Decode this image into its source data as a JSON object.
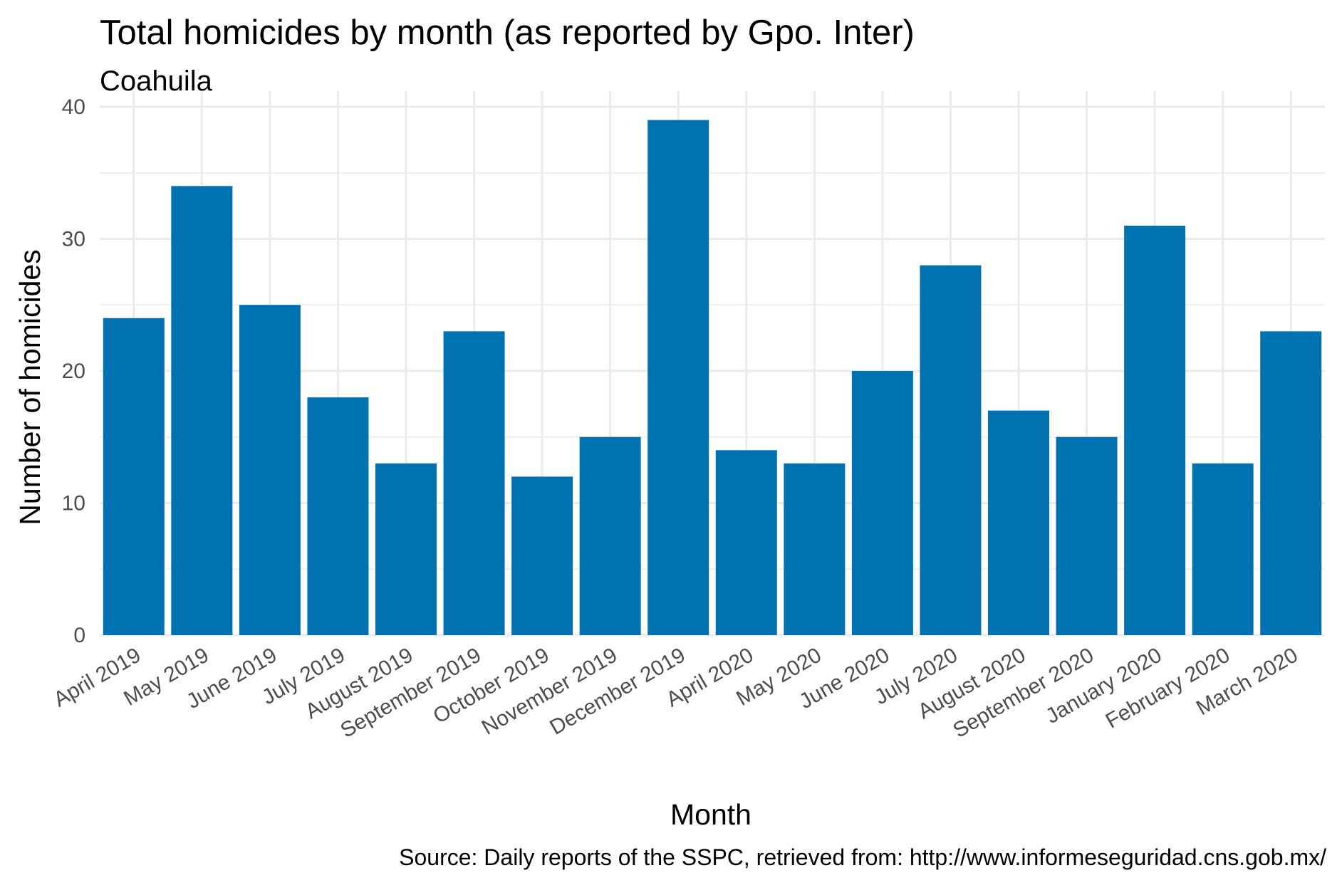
{
  "chart_data": {
    "type": "bar",
    "title": "Total homicides by month (as reported by Gpo. Inter)",
    "subtitle": "Coahuila",
    "caption": "Source: Daily reports of the SSPC, retrieved from: http://www.informeseguridad.cns.gob.mx/",
    "xlabel": "Month",
    "ylabel": "Number of homicides",
    "categories": [
      "April 2019",
      "May 2019",
      "June 2019",
      "July 2019",
      "August 2019",
      "September 2019",
      "October 2019",
      "November 2019",
      "December 2019",
      "April 2020",
      "May 2020",
      "June 2020",
      "July 2020",
      "August 2020",
      "September 2020",
      "January 2020",
      "February 2020",
      "March 2020"
    ],
    "values": [
      24,
      34,
      25,
      18,
      13,
      23,
      12,
      15,
      39,
      14,
      13,
      20,
      28,
      17,
      15,
      31,
      13,
      23
    ],
    "ylim": [
      0,
      40
    ],
    "yticks": [
      0,
      10,
      20,
      30,
      40
    ],
    "bar_color": "#0072B2",
    "grid": true,
    "legend": "none"
  }
}
